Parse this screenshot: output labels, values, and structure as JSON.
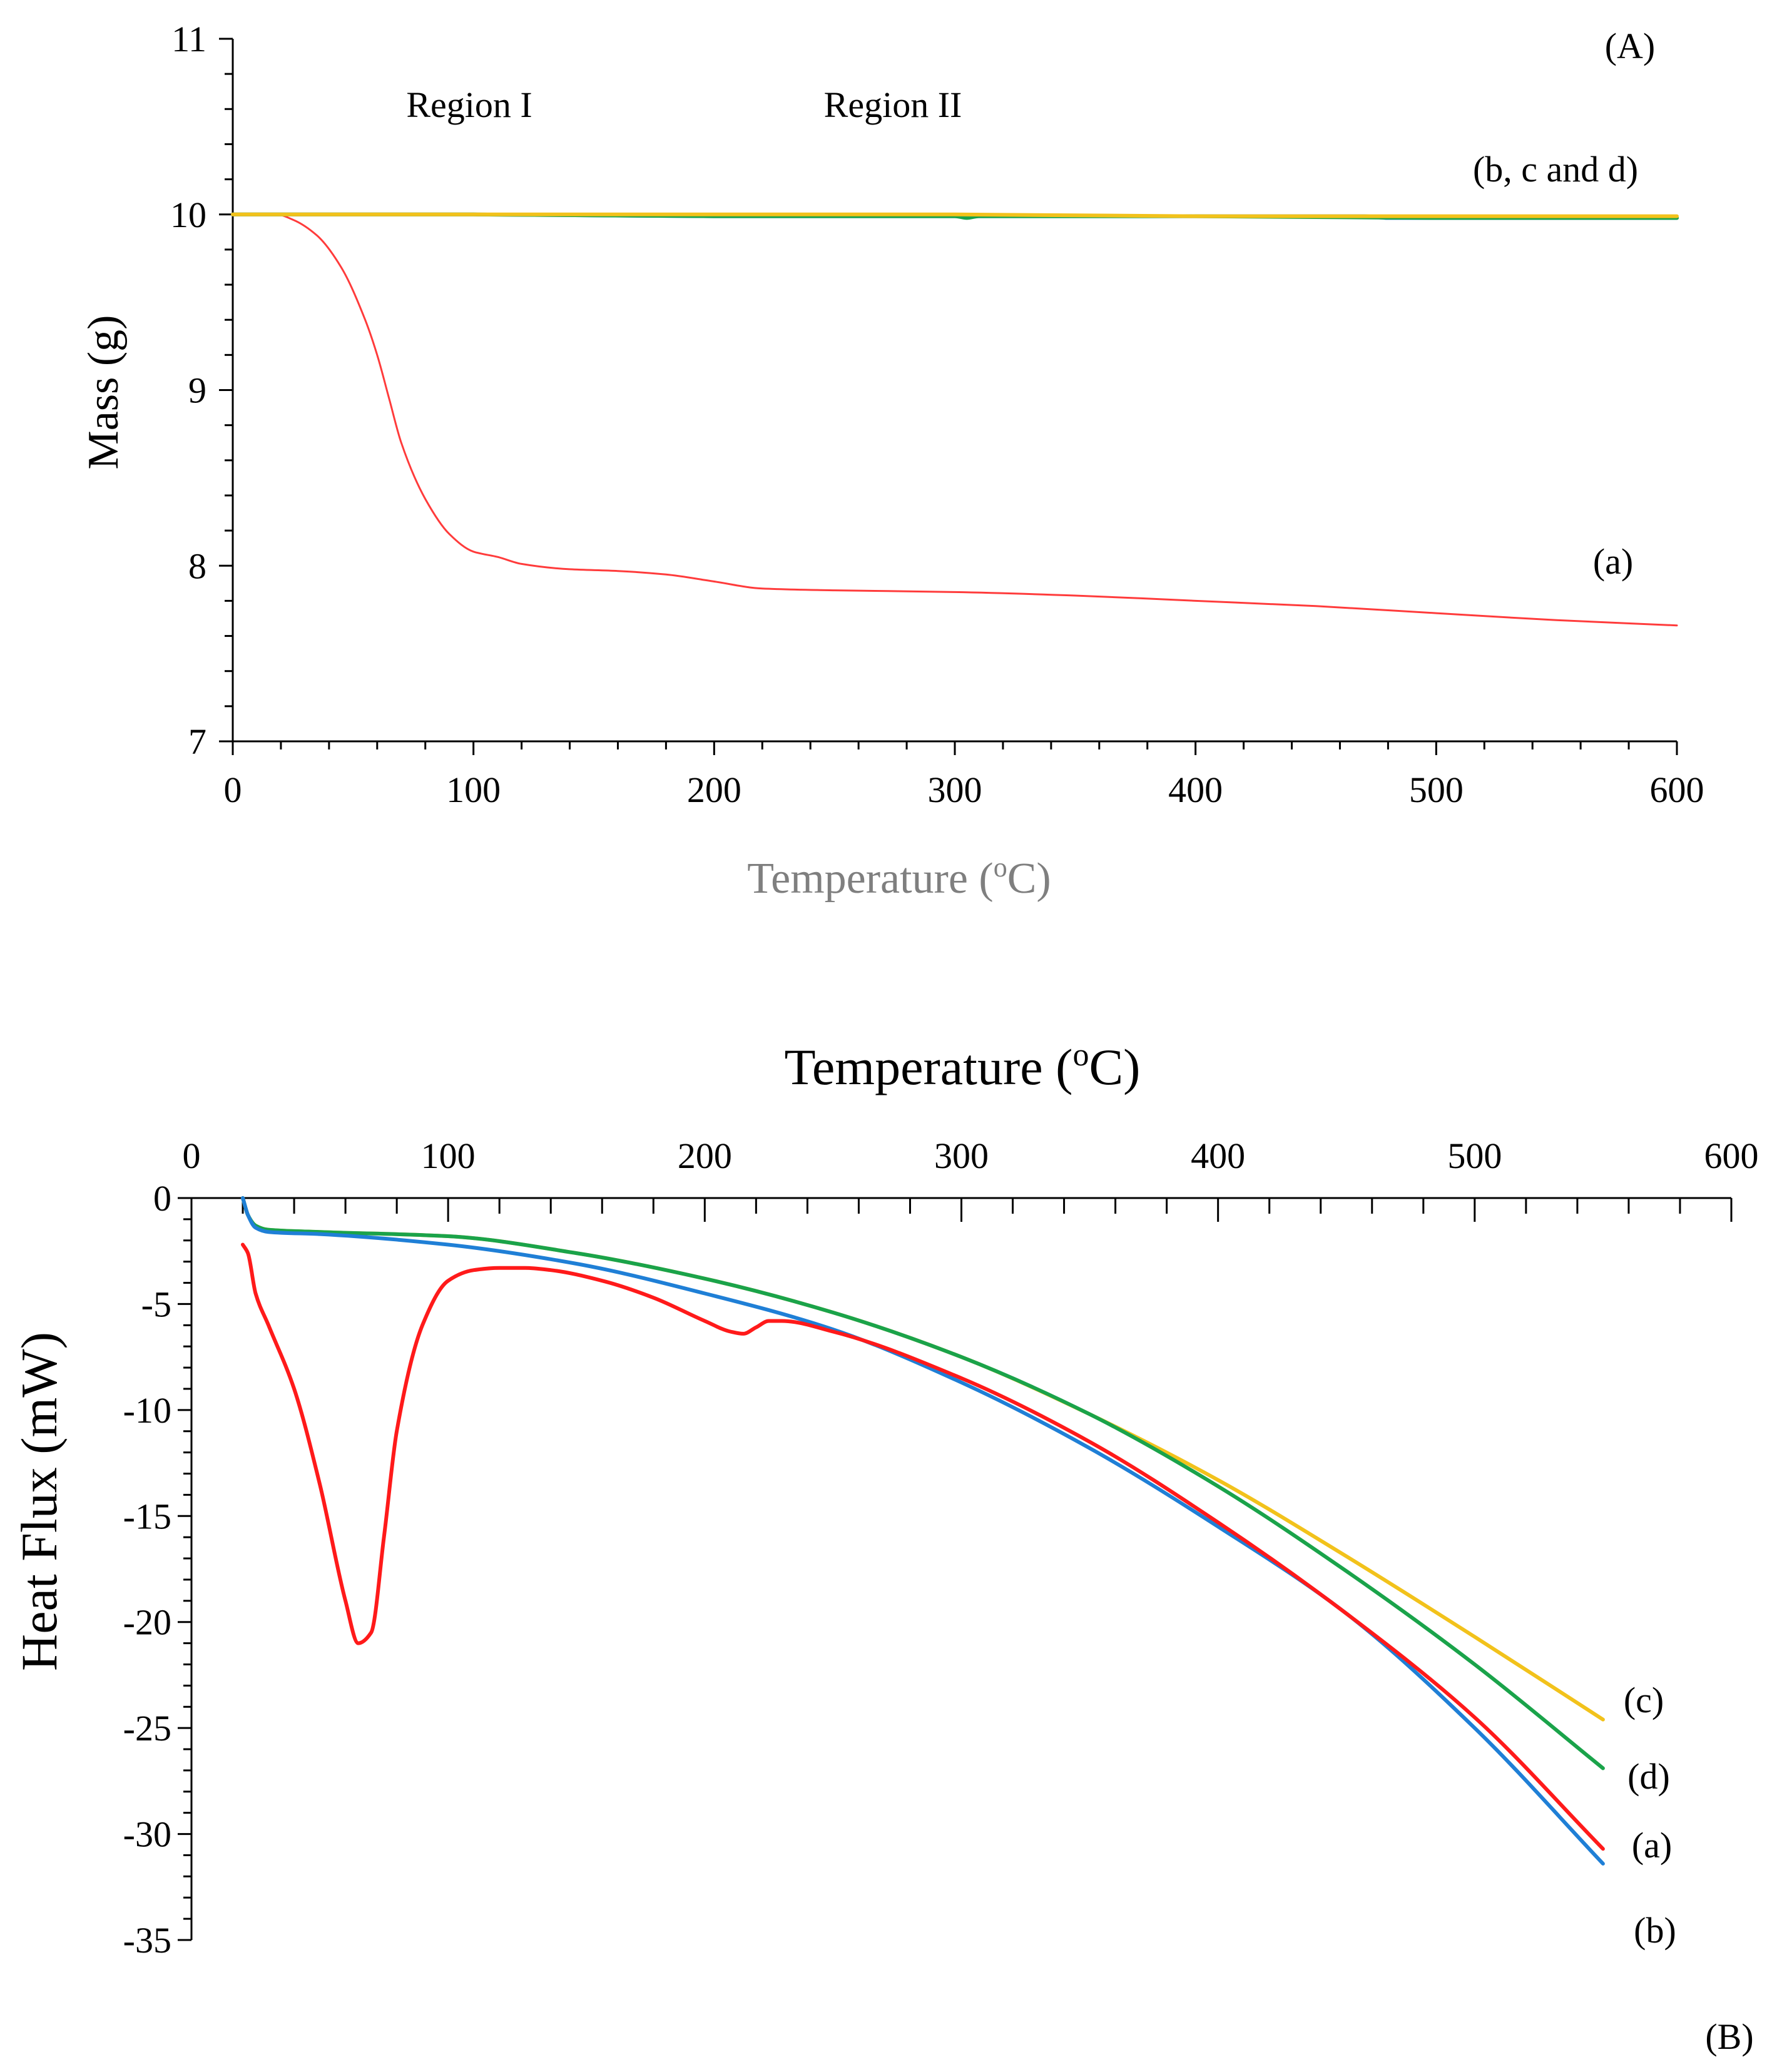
{
  "chart_data": [
    {
      "panel_label": "(A)",
      "type": "line",
      "xlabel": "Temperature (",
      "xlabel_sup": "o",
      "xlabel_suffix": "C)",
      "ylabel": "Mass (g)",
      "xlim": [
        0,
        600
      ],
      "ylim": [
        7,
        11
      ],
      "x_ticks": [
        0,
        100,
        200,
        300,
        400,
        500,
        600
      ],
      "y_ticks": [
        7,
        8,
        9,
        10,
        11
      ],
      "grid": false,
      "annotations": {
        "region_1": "Region I",
        "region_2": "Region II",
        "bcd_label": "(b, c and d)",
        "a_label": "(a)"
      },
      "series": [
        {
          "name": "(a)",
          "color": "#ff3b3b",
          "x": [
            0,
            18,
            25,
            35,
            45,
            55,
            60,
            65,
            70,
            80,
            90,
            100,
            110,
            120,
            140,
            160,
            180,
            200,
            220,
            250,
            300,
            350,
            400,
            450,
            500,
            550,
            600
          ],
          "y": [
            10.0,
            10.0,
            9.97,
            9.88,
            9.7,
            9.4,
            9.2,
            8.95,
            8.7,
            8.38,
            8.18,
            8.08,
            8.05,
            8.01,
            7.98,
            7.97,
            7.95,
            7.91,
            7.87,
            7.86,
            7.85,
            7.83,
            7.8,
            7.77,
            7.73,
            7.69,
            7.66
          ]
        },
        {
          "name": "(b)",
          "color": "#1f7fd6",
          "x": [
            0,
            100,
            200,
            300,
            400,
            470,
            480,
            500,
            600
          ],
          "y": [
            10.0,
            10.0,
            9.99,
            9.99,
            9.99,
            9.99,
            9.98,
            9.98,
            9.98
          ]
        },
        {
          "name": "(c)",
          "color": "#f2c21b",
          "x": [
            0,
            100,
            200,
            300,
            400,
            500,
            600
          ],
          "y": [
            10.0,
            10.0,
            10.0,
            10.0,
            9.99,
            9.99,
            9.99
          ]
        },
        {
          "name": "(d)",
          "color": "#1aa34a",
          "x": [
            0,
            100,
            200,
            300,
            305,
            310,
            400,
            500,
            600
          ],
          "y": [
            10.0,
            10.0,
            9.99,
            9.99,
            9.98,
            9.99,
            9.99,
            9.98,
            9.98
          ]
        }
      ]
    },
    {
      "panel_label": "(B)",
      "type": "line",
      "xlabel": "Temperature (",
      "xlabel_sup": "o",
      "xlabel_suffix": "C)",
      "xaxis_position": "top",
      "ylabel": "Heat Flux (mW)",
      "xlim": [
        0,
        600
      ],
      "ylim": [
        -35,
        0
      ],
      "x_ticks": [
        0,
        100,
        200,
        300,
        400,
        500,
        600
      ],
      "y_ticks": [
        0,
        -5,
        -10,
        -15,
        -20,
        -25,
        -30,
        -35
      ],
      "grid": false,
      "series": [
        {
          "name": "(a)",
          "color": "#ff1a1a",
          "x": [
            20,
            22,
            25,
            30,
            40,
            50,
            60,
            65,
            70,
            75,
            80,
            90,
            100,
            110,
            120,
            130,
            140,
            160,
            180,
            200,
            210,
            215,
            220,
            225,
            230,
            250,
            300,
            350,
            400,
            450,
            500,
            550
          ],
          "y": [
            -2.2,
            -2.6,
            -4.5,
            -6.0,
            -9.0,
            -13.5,
            -19.0,
            -21.0,
            -20.5,
            -16.0,
            -11.0,
            -6.0,
            -3.9,
            -3.4,
            -3.3,
            -3.3,
            -3.4,
            -3.9,
            -4.7,
            -5.8,
            -6.3,
            -6.4,
            -6.1,
            -5.8,
            -5.8,
            -6.3,
            -8.5,
            -11.5,
            -15.3,
            -19.6,
            -24.5,
            -30.7
          ]
        },
        {
          "name": "(b)",
          "color": "#1f7fd6",
          "x": [
            20,
            22,
            25,
            30,
            50,
            100,
            150,
            200,
            250,
            300,
            350,
            400,
            450,
            500,
            550
          ],
          "y": [
            0,
            -0.8,
            -1.4,
            -1.6,
            -1.7,
            -2.2,
            -3.1,
            -4.5,
            -6.2,
            -8.7,
            -11.8,
            -15.5,
            -19.6,
            -25.0,
            -31.4
          ]
        },
        {
          "name": "(c)",
          "color": "#f2c21b",
          "x": [
            20,
            22,
            25,
            30,
            50,
            100,
            150,
            200,
            250,
            300,
            350,
            400,
            450,
            500,
            550
          ],
          "y": [
            0,
            -0.8,
            -1.3,
            -1.5,
            -1.6,
            -1.8,
            -2.6,
            -3.8,
            -5.4,
            -7.5,
            -10.2,
            -13.3,
            -16.9,
            -20.7,
            -24.6
          ]
        },
        {
          "name": "(d)",
          "color": "#1aa34a",
          "x": [
            20,
            22,
            25,
            30,
            50,
            100,
            150,
            200,
            250,
            300,
            350,
            400,
            450,
            500,
            550
          ],
          "y": [
            0,
            -0.8,
            -1.3,
            -1.5,
            -1.6,
            -1.8,
            -2.6,
            -3.8,
            -5.4,
            -7.5,
            -10.2,
            -13.6,
            -17.6,
            -22.0,
            -26.9
          ]
        }
      ],
      "end_labels": [
        "(c)",
        "(d)",
        "(a)",
        "(b)"
      ]
    }
  ]
}
